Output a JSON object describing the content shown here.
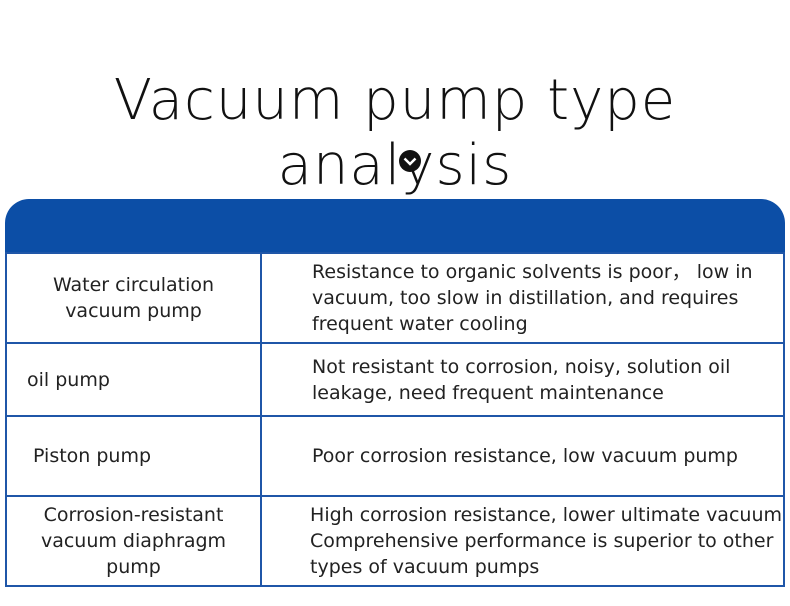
{
  "header": {
    "title": "Vacuum pump type analysis"
  },
  "table": {
    "rows": [
      {
        "name": [
          "Water circulation",
          "vacuum pump"
        ],
        "desc": [
          "Resistance to organic solvents is poor，  low in",
          "vacuum, too slow in distillation, and requires",
          "frequent water cooling"
        ]
      },
      {
        "name": [
          "oil pump"
        ],
        "desc": [
          "Not resistant to corrosion, noisy, solution oil",
          "leakage, need frequent maintenance"
        ]
      },
      {
        "name": [
          "Piston pump"
        ],
        "desc": [
          "Poor corrosion resistance, low vacuum pump"
        ]
      },
      {
        "name": [
          "Corrosion-resistant",
          "vacuum diaphragm",
          "pump"
        ],
        "desc": [
          "High corrosion resistance, lower ultimate vacuum",
          "Comprehensive performance is superior to other",
          "types of vacuum pumps"
        ]
      }
    ]
  }
}
